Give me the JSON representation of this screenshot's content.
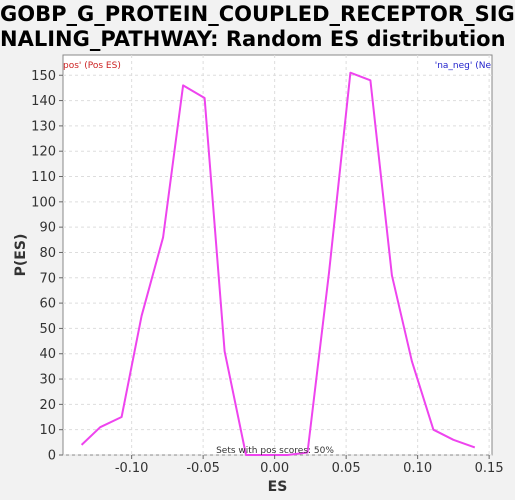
{
  "title_line1": "GOBP_G_PROTEIN_COUPLED_RECEPTOR_SIG",
  "title_line2": "NALING_PATHWAY: Random ES distribution",
  "chart_data": {
    "type": "line",
    "title": "GOBP_G_PROTEIN_COUPLED_RECEPTOR_SIGNALING_PATHWAY: Random ES distribution",
    "xlabel": "ES",
    "ylabel": "P(ES)",
    "xlim": [
      -0.148,
      0.152
    ],
    "ylim": [
      0,
      158
    ],
    "x_ticks": [
      -0.1,
      -0.05,
      0.0,
      0.05,
      0.1,
      0.15
    ],
    "x_tick_labels": [
      "-0.10",
      "-0.05",
      "0.00",
      "0.05",
      "0.10",
      "0.15"
    ],
    "y_ticks": [
      0,
      10,
      20,
      30,
      40,
      50,
      60,
      70,
      80,
      90,
      100,
      110,
      120,
      130,
      140,
      150
    ],
    "grid": true,
    "legend_pos_text": "pos' (Pos ES)",
    "legend_neg_text": "'na_neg' (Ne",
    "annotation": "Sets with pos scores: 50%",
    "series": [
      {
        "color": "#ee44ee",
        "x": [
          -0.135,
          -0.122,
          -0.107,
          -0.093,
          -0.078,
          -0.064,
          -0.049,
          -0.035,
          -0.02,
          -0.006,
          0.009,
          0.023,
          0.038,
          0.053,
          0.067,
          0.082,
          0.096,
          0.111,
          0.125,
          0.14
        ],
        "y": [
          4,
          11,
          15,
          55,
          86,
          146,
          141,
          41,
          0,
          0,
          0,
          1,
          72,
          151,
          148,
          71,
          37,
          10,
          6,
          3
        ]
      }
    ]
  }
}
